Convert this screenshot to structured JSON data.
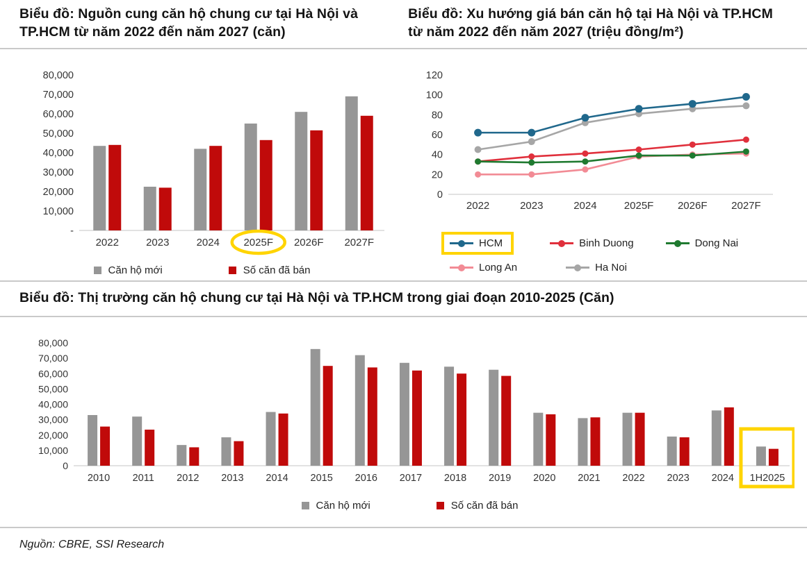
{
  "page": {
    "source_note": "Nguồn: CBRE, SSI Research"
  },
  "colors": {
    "bar_gray": "#969696",
    "bar_red": "#C00A0A",
    "highlight_yellow": "#FFD400",
    "axis_line": "#D9D9D9",
    "axis_text": "#333333",
    "divider": "#C9C9C9"
  },
  "legend_bars": {
    "new_label": "Căn hộ mới",
    "sold_label": "Số căn đã bán"
  },
  "chart_data": [
    {
      "id": "supply",
      "type": "bar",
      "title": "Biểu đồ: Nguồn cung căn hộ chung cư tại Hà Nội và TP.HCM từ năm 2022 đến năm 2027 (căn)",
      "categories": [
        "2022",
        "2023",
        "2024",
        "2025F",
        "2026F",
        "2027F"
      ],
      "series": [
        {
          "name": "Căn hộ mới",
          "color": "#969696",
          "values": [
            43500,
            22500,
            42000,
            55000,
            61000,
            69000
          ]
        },
        {
          "name": "Số căn đã bán",
          "color": "#C00A0A",
          "values": [
            44000,
            22000,
            43500,
            46500,
            51500,
            59000
          ]
        }
      ],
      "xlabel": "",
      "ylabel": "",
      "ylim": [
        0,
        80000
      ],
      "ytick_step": 10000,
      "zero_label": "-",
      "grid": false,
      "legend_position": "bottom",
      "highlight": {
        "type": "ellipse",
        "category": "2025F"
      }
    },
    {
      "id": "price-trend",
      "type": "line",
      "title": "Biểu đồ: Xu hướng giá bán căn hộ tại Hà Nội và TP.HCM từ năm 2022 đến năm 2027 (triệu đồng/m²)",
      "x": [
        "2022",
        "2023",
        "2024",
        "2025F",
        "2026F",
        "2027F"
      ],
      "series": [
        {
          "name": "HCM",
          "color": "#20688C",
          "values": [
            62,
            62,
            77,
            86,
            91,
            98
          ],
          "highlighted": true
        },
        {
          "name": "Binh Duong",
          "color": "#E0303C",
          "values": [
            33,
            38,
            41,
            45,
            50,
            55
          ]
        },
        {
          "name": "Dong Nai",
          "color": "#1F7A30",
          "values": [
            33,
            32,
            33,
            39,
            39,
            43
          ]
        },
        {
          "name": "Long An",
          "color": "#F28B95",
          "values": [
            20,
            20,
            25,
            38,
            40,
            41
          ]
        },
        {
          "name": "Ha Noi",
          "color": "#A6A6A6",
          "values": [
            45,
            53,
            72,
            81,
            86,
            89
          ]
        }
      ],
      "xlabel": "",
      "ylabel": "",
      "ylim": [
        0,
        120
      ],
      "ytick_step": 20,
      "zero_label": "0",
      "grid": false,
      "legend_position": "bottom"
    },
    {
      "id": "market-history",
      "type": "bar",
      "title": "Biểu đồ: Thị trường căn hộ chung cư tại Hà Nội và TP.HCM trong giai đoạn 2010-2025 (Căn)",
      "categories": [
        "2010",
        "2011",
        "2012",
        "2013",
        "2014",
        "2015",
        "2016",
        "2017",
        "2018",
        "2019",
        "2020",
        "2021",
        "2022",
        "2023",
        "2024",
        "1H2025"
      ],
      "series": [
        {
          "name": "Căn hộ mới",
          "color": "#969696",
          "values": [
            33000,
            32000,
            13500,
            18500,
            35000,
            76000,
            72000,
            67000,
            64500,
            62500,
            34500,
            31000,
            34500,
            19000,
            36000,
            12500
          ]
        },
        {
          "name": "Số căn đã bán",
          "color": "#C00A0A",
          "values": [
            25500,
            23500,
            12000,
            16000,
            34000,
            65000,
            64000,
            62000,
            60000,
            58500,
            33500,
            31500,
            34500,
            18500,
            38000,
            11000
          ]
        }
      ],
      "xlabel": "",
      "ylabel": "",
      "ylim": [
        0,
        80000
      ],
      "ytick_step": 10000,
      "zero_label": "0",
      "grid": false,
      "legend_position": "bottom",
      "highlight": {
        "type": "box",
        "category": "1H2025"
      }
    }
  ]
}
